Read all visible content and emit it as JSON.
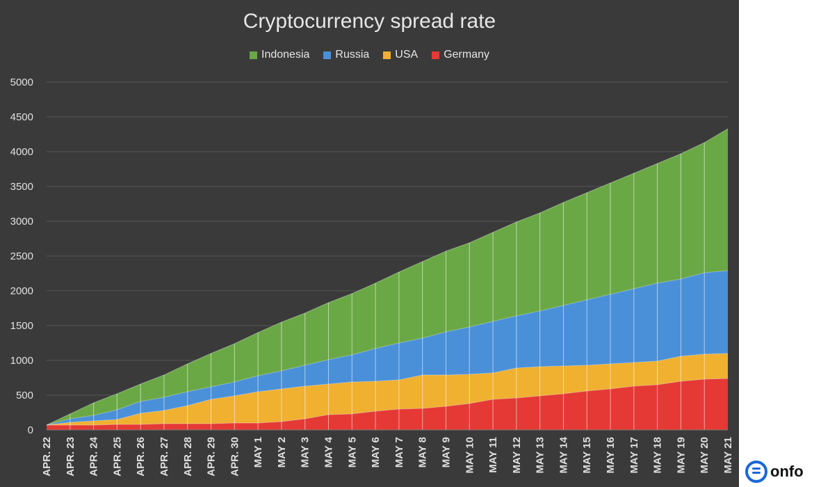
{
  "chart_data": {
    "type": "area",
    "stacked": true,
    "title": "Cryptocurrency spread rate",
    "xlabel": "",
    "ylabel": "",
    "ylim": [
      0,
      5000
    ],
    "yticks": [
      0,
      500,
      1000,
      1500,
      2000,
      2500,
      3000,
      3500,
      4000,
      4500,
      5000
    ],
    "grid": true,
    "legend_position": "top-center",
    "categories": [
      "APR. 22",
      "APR. 23",
      "APR. 24",
      "APR. 25",
      "APR. 26",
      "APR. 27",
      "APR. 28",
      "APR. 29",
      "APR. 30",
      "MAY 1",
      "MAY 2",
      "MAY 3",
      "MAY 4",
      "MAY 5",
      "MAY 6",
      "MAY 7",
      "MAY 8",
      "MAY 9",
      "MAY 10",
      "MAY 11",
      "MAY 12",
      "MAY 13",
      "MAY 14",
      "MAY 15",
      "MAY 16",
      "MAY 17",
      "MAY 18",
      "MAY 19",
      "MAY 20",
      "MAY 21"
    ],
    "series": [
      {
        "name": "Germany",
        "color": "#e53935",
        "values": [
          70,
          70,
          70,
          80,
          80,
          90,
          90,
          90,
          100,
          100,
          120,
          160,
          220,
          230,
          270,
          300,
          310,
          340,
          380,
          440,
          460,
          490,
          520,
          560,
          590,
          630,
          650,
          700,
          730,
          740
        ]
      },
      {
        "name": "USA",
        "color": "#f0b030",
        "values": [
          0,
          40,
          60,
          70,
          160,
          190,
          260,
          350,
          390,
          450,
          470,
          470,
          440,
          460,
          430,
          420,
          480,
          450,
          420,
          380,
          430,
          420,
          400,
          370,
          360,
          340,
          340,
          360,
          360,
          360
        ]
      },
      {
        "name": "Russia",
        "color": "#4a90d9",
        "values": [
          0,
          50,
          80,
          140,
          170,
          190,
          200,
          180,
          200,
          230,
          260,
          300,
          350,
          390,
          470,
          530,
          530,
          620,
          680,
          740,
          750,
          800,
          870,
          940,
          1000,
          1060,
          1120,
          1110,
          1170,
          1190
        ]
      },
      {
        "name": "Indonesia",
        "color": "#6aa845",
        "values": [
          0,
          70,
          180,
          230,
          250,
          320,
          400,
          480,
          550,
          620,
          700,
          750,
          820,
          880,
          940,
          1020,
          1100,
          1160,
          1210,
          1280,
          1350,
          1410,
          1480,
          1540,
          1600,
          1660,
          1720,
          1800,
          1870,
          2040
        ]
      }
    ]
  }
}
